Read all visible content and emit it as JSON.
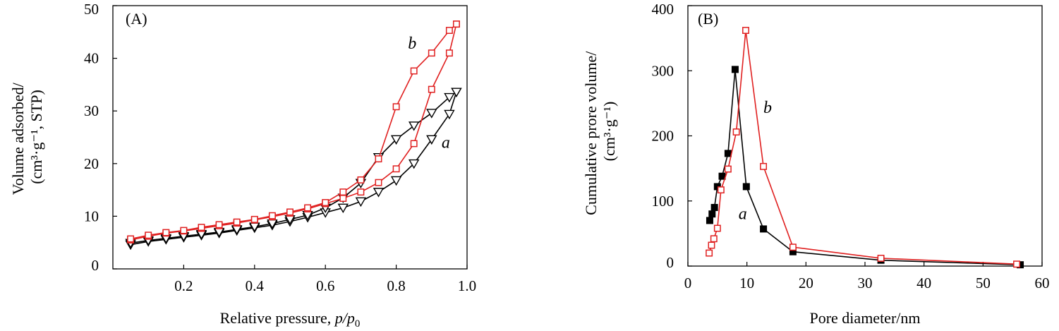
{
  "colors": {
    "black": "#000000",
    "red": "#e02020"
  },
  "chart_data": [
    {
      "type": "line",
      "panel_label": "(A)",
      "xlabel": "Relative pressure, p/p₀",
      "xlabel_parts": {
        "main": "Relative pressure, ",
        "italic": "p/p",
        "sub": "0"
      },
      "ylabel_lines": [
        "Volume adsorbed/",
        "(cm³·g⁻¹, STP)"
      ],
      "xlim": [
        0.0,
        1.0
      ],
      "ylim": [
        0,
        50
      ],
      "xticks": [
        0.2,
        0.4,
        0.6,
        0.8,
        1.0
      ],
      "xtick_labels": [
        "0.2",
        "0.4",
        "0.6",
        "0.8",
        "1.0"
      ],
      "yticks": [
        0,
        10,
        20,
        30,
        40,
        50
      ],
      "ytick_labels": [
        "0",
        "10",
        "20",
        "30",
        "40",
        "50"
      ],
      "grid": false,
      "series": [
        {
          "name": "a",
          "label": "a",
          "label_pos": [
            0.94,
            23.0
          ],
          "color": "#000000",
          "marker": "triangle-down",
          "adsorption": {
            "x": [
              0.05,
              0.1,
              0.15,
              0.2,
              0.25,
              0.3,
              0.35,
              0.4,
              0.45,
              0.5,
              0.55,
              0.6,
              0.65,
              0.7,
              0.75,
              0.8,
              0.85,
              0.9,
              0.95,
              0.97
            ],
            "y": [
              4.6,
              5.2,
              5.6,
              6.0,
              6.4,
              6.8,
              7.3,
              7.8,
              8.3,
              9.0,
              9.8,
              10.7,
              11.6,
              12.8,
              14.6,
              16.8,
              20.0,
              24.6,
              29.4,
              33.6
            ]
          },
          "desorption": {
            "x": [
              0.97,
              0.95,
              0.9,
              0.85,
              0.8,
              0.75,
              0.7,
              0.65,
              0.6,
              0.55,
              0.5,
              0.45,
              0.4,
              0.35,
              0.3,
              0.25,
              0.2,
              0.15,
              0.1,
              0.05
            ],
            "y": [
              33.6,
              32.6,
              29.6,
              27.2,
              24.6,
              21.2,
              16.3,
              13.5,
              11.6,
              10.2,
              9.4,
              8.6,
              8.0,
              7.5,
              7.0,
              6.6,
              6.2,
              5.8,
              5.4,
              4.9
            ]
          }
        },
        {
          "name": "b",
          "label": "b",
          "label_pos": [
            0.845,
            41.8
          ],
          "color": "#e02020",
          "marker": "square",
          "adsorption": {
            "x": [
              0.05,
              0.1,
              0.15,
              0.2,
              0.25,
              0.3,
              0.35,
              0.4,
              0.45,
              0.5,
              0.55,
              0.6,
              0.65,
              0.7,
              0.75,
              0.8,
              0.85,
              0.9,
              0.95,
              0.97
            ],
            "y": [
              5.5,
              6.2,
              6.8,
              7.2,
              7.7,
              8.2,
              8.7,
              9.3,
              9.9,
              10.6,
              11.4,
              12.4,
              13.4,
              14.6,
              16.4,
              19.0,
              23.8,
              34.1,
              41.0,
              46.5
            ]
          },
          "desorption": {
            "x": [
              0.97,
              0.95,
              0.9,
              0.85,
              0.8,
              0.75,
              0.7,
              0.65,
              0.6,
              0.55,
              0.5,
              0.45,
              0.4,
              0.35,
              0.3,
              0.25,
              0.2,
              0.15,
              0.1,
              0.05
            ],
            "y": [
              46.5,
              45.3,
              41.0,
              37.6,
              30.8,
              20.9,
              16.9,
              14.6,
              12.6,
              11.6,
              10.8,
              10.1,
              9.4,
              8.9,
              8.4,
              7.9,
              7.3,
              6.9,
              6.4,
              5.7
            ]
          }
        }
      ]
    },
    {
      "type": "line",
      "panel_label": "(B)",
      "xlabel": "Pore diameter/nm",
      "ylabel_lines": [
        "Cumulative prore volume/",
        "(cm³·g⁻¹)"
      ],
      "xlim": [
        0,
        60
      ],
      "ylim": [
        0,
        400
      ],
      "xticks": [
        0,
        10,
        20,
        30,
        40,
        50,
        60
      ],
      "xtick_labels": [
        "0",
        "10",
        "20",
        "30",
        "40",
        "50",
        "60"
      ],
      "yticks": [
        0,
        100,
        200,
        300,
        400
      ],
      "ytick_labels": [
        "0",
        "100",
        "200",
        "300",
        "400"
      ],
      "grid": false,
      "series": [
        {
          "name": "a",
          "label": "a",
          "label_pos": [
            9.3,
            72.0
          ],
          "color": "#000000",
          "marker": "filled-square",
          "x": [
            3.7,
            4.1,
            4.5,
            5.0,
            5.8,
            6.8,
            8.0,
            9.9,
            12.8,
            17.8,
            32.7,
            56.3
          ],
          "y": [
            70,
            80,
            90,
            122,
            138,
            173,
            302,
            122,
            57,
            22,
            9,
            2
          ]
        },
        {
          "name": "b",
          "label": "b",
          "label_pos": [
            13.5,
            235.0
          ],
          "color": "#e02020",
          "marker": "square",
          "x": [
            3.6,
            4.0,
            4.4,
            5.0,
            5.6,
            6.8,
            8.2,
            9.8,
            12.8,
            17.8,
            32.7,
            55.7
          ],
          "y": [
            20,
            32,
            42,
            58,
            117,
            149,
            206,
            362,
            153,
            29,
            12,
            3
          ]
        }
      ]
    }
  ]
}
